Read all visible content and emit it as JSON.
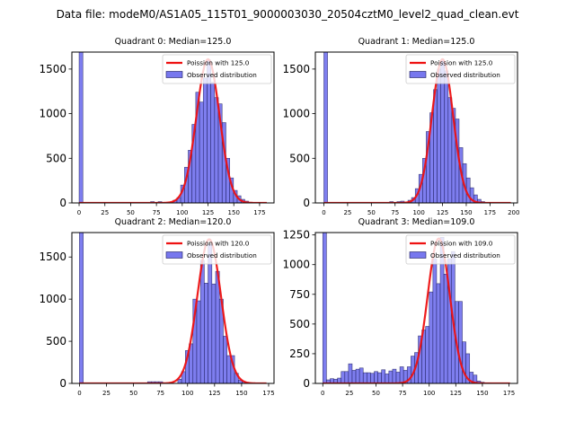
{
  "chart_data": {
    "type": "bar",
    "suptitle": "Data file: modeM0/AS1A05_115T01_9000003030_20504cztM0_level2_quad_clean.evt",
    "colors": {
      "bar_fill": "#7777ee",
      "bar_edge": "#1a1a5a",
      "curve": "#ee1111",
      "axis": "#000000"
    },
    "legend_labels": {
      "observed": "Observed distribution"
    },
    "panels": [
      {
        "title": "Quadrant 0: Median=125.0",
        "median": 125.0,
        "curve_label": "Poission with 125.0",
        "xlim": [
          -7,
          189
        ],
        "ylim": [
          0,
          1690
        ],
        "xticks": [
          0,
          25,
          50,
          75,
          100,
          125,
          150,
          175
        ],
        "yticks": [
          0,
          500,
          1000,
          1500
        ],
        "bin_width": 3.65,
        "bins_start": [
          0,
          69.3,
          76.6,
          91.2,
          94.9,
          98.5,
          102.2,
          105.8,
          109.5,
          113.1,
          116.8,
          120.4,
          124.1,
          127.7,
          131.4,
          135.0,
          138.7,
          142.4,
          146.0,
          149.7,
          153.3,
          157.0,
          160.6,
          164.3
        ],
        "counts": [
          1690,
          15,
          15,
          30,
          60,
          200,
          400,
          590,
          880,
          1240,
          1130,
          1400,
          1600,
          1350,
          1180,
          1110,
          900,
          500,
          280,
          140,
          80,
          40,
          20,
          8
        ],
        "curve_peak": 1610,
        "curve_sigma": 11.2
      },
      {
        "title": "Quadrant 1: Median=125.0",
        "median": 125.0,
        "curve_label": "Poission with 125.0",
        "xlim": [
          -9,
          204
        ],
        "ylim": [
          0,
          1690
        ],
        "xticks": [
          0,
          25,
          50,
          75,
          100,
          125,
          150,
          175,
          200
        ],
        "yticks": [
          0,
          500,
          1000,
          1500
        ],
        "bin_width": 3.85,
        "bins_start": [
          0,
          69.3,
          77.0,
          80.9,
          88.6,
          92.4,
          96.3,
          100.1,
          104.0,
          107.8,
          111.7,
          115.5,
          119.4,
          123.2,
          127.1,
          130.9,
          134.8,
          138.6,
          142.5,
          146.3,
          150.2,
          154.0,
          157.9,
          161.7,
          165.6
        ],
        "counts": [
          1690,
          15,
          15,
          20,
          30,
          60,
          160,
          320,
          500,
          800,
          1010,
          1270,
          1500,
          1600,
          1480,
          1180,
          1060,
          940,
          620,
          440,
          280,
          170,
          90,
          40,
          15
        ],
        "curve_peak": 1610,
        "curve_sigma": 11.2
      },
      {
        "title": "Quadrant 2: Median=120.0",
        "median": 120.0,
        "curve_label": "Poission with 120.0",
        "xlim": [
          -7,
          180
        ],
        "ylim": [
          0,
          1790
        ],
        "xticks": [
          0,
          25,
          50,
          75,
          100,
          125,
          150,
          175
        ],
        "yticks": [
          0,
          500,
          1000,
          1500
        ],
        "bin_width": 3.5,
        "bins_start": [
          0,
          63.0,
          66.5,
          70.0,
          73.5,
          91.0,
          94.5,
          98.0,
          101.5,
          105.0,
          108.5,
          112.0,
          115.5,
          119.0,
          122.5,
          126.0,
          129.5,
          133.0,
          136.5,
          140.0,
          143.5,
          147.0,
          150.5,
          154.0,
          157.5
        ],
        "counts": [
          1790,
          20,
          20,
          20,
          20,
          50,
          140,
          390,
          470,
          1000,
          980,
          1460,
          1190,
          1650,
          1180,
          1330,
          1000,
          560,
          330,
          330,
          120,
          40,
          20,
          10,
          5
        ],
        "curve_peak": 1710,
        "curve_sigma": 10.95
      },
      {
        "title": "Quadrant 3: Median=109.0",
        "median": 109.0,
        "curve_label": "Poission with 109.0",
        "xlim": [
          -7,
          183
        ],
        "ylim": [
          0,
          1270
        ],
        "xticks": [
          0,
          25,
          50,
          75,
          100,
          125,
          150,
          175
        ],
        "yticks": [
          0,
          250,
          500,
          750,
          1000,
          1250
        ],
        "bin_width": 3.45,
        "bins_start": [
          0,
          3.45,
          6.9,
          10.35,
          13.8,
          17.25,
          20.7,
          24.15,
          27.6,
          31.05,
          34.5,
          37.95,
          41.4,
          44.85,
          48.3,
          51.75,
          55.2,
          58.65,
          62.1,
          65.55,
          69.0,
          72.45,
          75.9,
          79.35,
          82.8,
          86.25,
          89.7,
          93.15,
          96.6,
          100.05,
          103.5,
          106.95,
          110.4,
          113.85,
          117.3,
          120.75,
          124.2,
          127.65,
          131.1,
          134.55,
          138.0,
          141.45,
          144.9,
          148.35,
          151.8,
          155.25
        ],
        "counts": [
          1270,
          30,
          40,
          35,
          45,
          100,
          100,
          165,
          110,
          120,
          130,
          90,
          90,
          85,
          100,
          90,
          115,
          80,
          105,
          120,
          95,
          140,
          110,
          140,
          230,
          260,
          400,
          450,
          480,
          770,
          1050,
          840,
          1230,
          920,
          1050,
          1110,
          690,
          690,
          350,
          250,
          95,
          70,
          20,
          10,
          5,
          5
        ],
        "curve_peak": 1220,
        "curve_sigma": 10.44
      }
    ]
  }
}
